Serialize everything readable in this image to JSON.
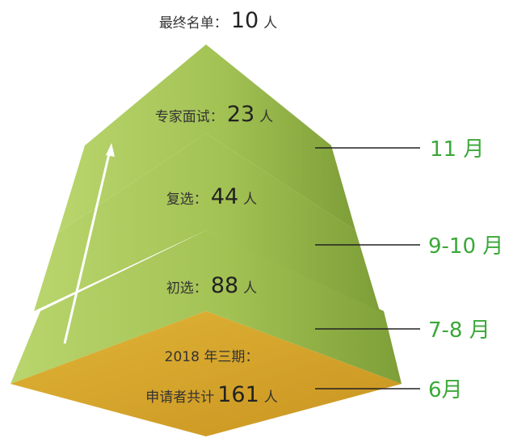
{
  "top": {
    "label": "最终名单：",
    "count": 10,
    "unit": "人"
  },
  "stages": [
    {
      "label": "专家面试：",
      "count": 23,
      "unit": "人",
      "period": "11 月"
    },
    {
      "label": "复选：",
      "count": 44,
      "unit": "人",
      "period": "9-10 月"
    },
    {
      "label": "初选：",
      "count": 88,
      "unit": "人",
      "period": "7-8 月"
    },
    {
      "caption": "2018 年三期：",
      "label": "申请者共计",
      "count": 161,
      "unit": "人",
      "period": "6月"
    }
  ]
}
